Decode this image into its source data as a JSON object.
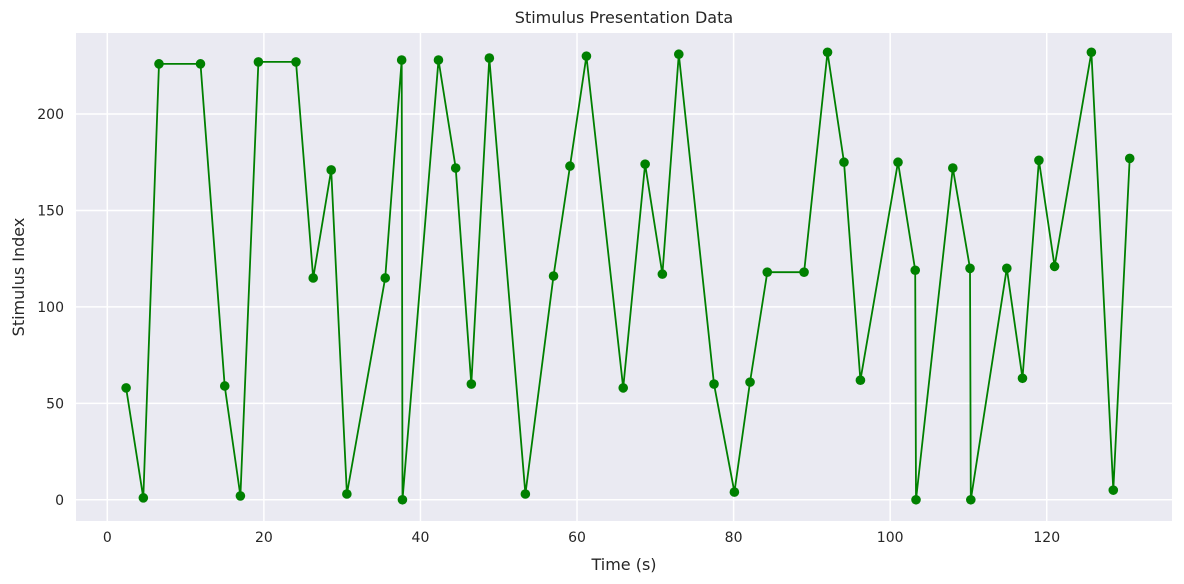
{
  "chart_data": {
    "type": "line",
    "title": "Stimulus Presentation Data",
    "xlabel": "Time (s)",
    "ylabel": "Stimulus Index",
    "xlim": [
      -4,
      136
    ],
    "ylim": [
      -11,
      242
    ],
    "xticks": [
      0,
      20,
      40,
      60,
      80,
      100,
      120
    ],
    "yticks": [
      0,
      50,
      100,
      150,
      200
    ],
    "grid": true,
    "legend": "none",
    "colors": {
      "line": "#008000",
      "marker": "#008000",
      "background": "#eaeaf2",
      "grid": "#ffffff"
    },
    "series": [
      {
        "x": [
          2.4,
          4.6,
          6.6,
          11.9,
          15.0,
          17.0,
          19.3,
          24.1,
          26.3,
          28.6,
          30.6,
          35.5,
          37.6,
          37.7,
          42.3,
          44.5,
          46.5,
          48.8,
          53.4,
          57.0,
          59.1,
          61.2,
          65.9,
          68.7,
          70.9,
          73.0,
          77.5,
          80.1,
          82.1,
          84.3,
          89.0,
          92.0,
          94.1,
          96.2,
          101.0,
          103.2,
          103.3,
          108.0,
          110.2,
          110.3,
          114.9,
          116.9,
          119.0,
          121.0,
          125.7,
          128.5,
          130.6
        ],
        "y": [
          58,
          1,
          226,
          226,
          59,
          2,
          227,
          227,
          115,
          171,
          3,
          115,
          228,
          0,
          228,
          172,
          60,
          229,
          3,
          116,
          173,
          230,
          58,
          174,
          117,
          231,
          60,
          4,
          61,
          118,
          118,
          232,
          175,
          62,
          175,
          119,
          0,
          172,
          120,
          0,
          120,
          63,
          176,
          121,
          232,
          5,
          177
        ]
      }
    ]
  }
}
